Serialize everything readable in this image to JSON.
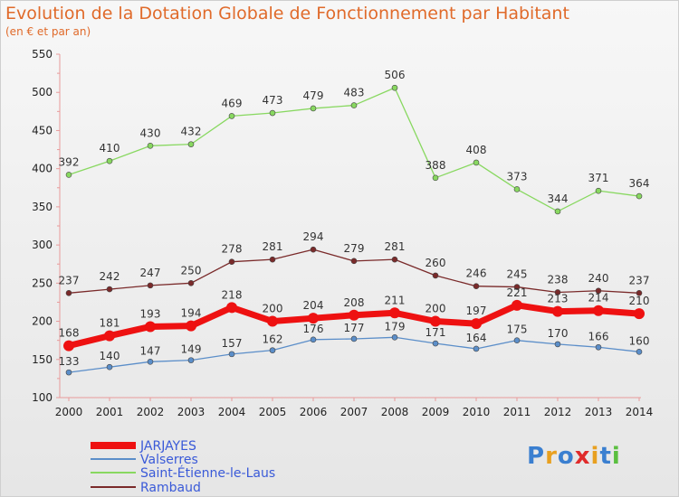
{
  "chart_data": {
    "type": "line",
    "title": "Evolution de la Dotation Globale de Fonctionnement par Habitant",
    "subtitle": "(en € et par an)",
    "categories": [
      "2000",
      "2001",
      "2002",
      "2003",
      "2004",
      "2005",
      "2006",
      "2007",
      "2008",
      "2009",
      "2010",
      "2011",
      "2012",
      "2013",
      "2014"
    ],
    "ylim": [
      100,
      550
    ],
    "yticks": [
      100,
      150,
      200,
      250,
      300,
      350,
      400,
      450,
      500,
      550
    ],
    "grid": false,
    "legend_position": "bottom-left",
    "series": [
      {
        "name": "JARJAYES",
        "color": "#ee1111",
        "values": [
          168,
          181,
          193,
          194,
          218,
          200,
          204,
          208,
          211,
          200,
          197,
          221,
          213,
          214,
          210
        ]
      },
      {
        "name": "Valserres",
        "color": "#5b8ec9",
        "values": [
          133,
          140,
          147,
          149,
          157,
          162,
          176,
          177,
          179,
          171,
          164,
          175,
          170,
          166,
          160
        ]
      },
      {
        "name": "Saint-Étienne-le-Laus",
        "color": "#88d860",
        "values": [
          392,
          410,
          430,
          432,
          469,
          473,
          479,
          483,
          506,
          388,
          408,
          373,
          344,
          371,
          364
        ]
      },
      {
        "name": "Rambaud",
        "color": "#7a2a2a",
        "values": [
          237,
          242,
          247,
          250,
          278,
          281,
          294,
          279,
          281,
          260,
          246,
          245,
          238,
          240,
          237
        ]
      }
    ]
  },
  "logo": {
    "text": "Proxiti"
  }
}
